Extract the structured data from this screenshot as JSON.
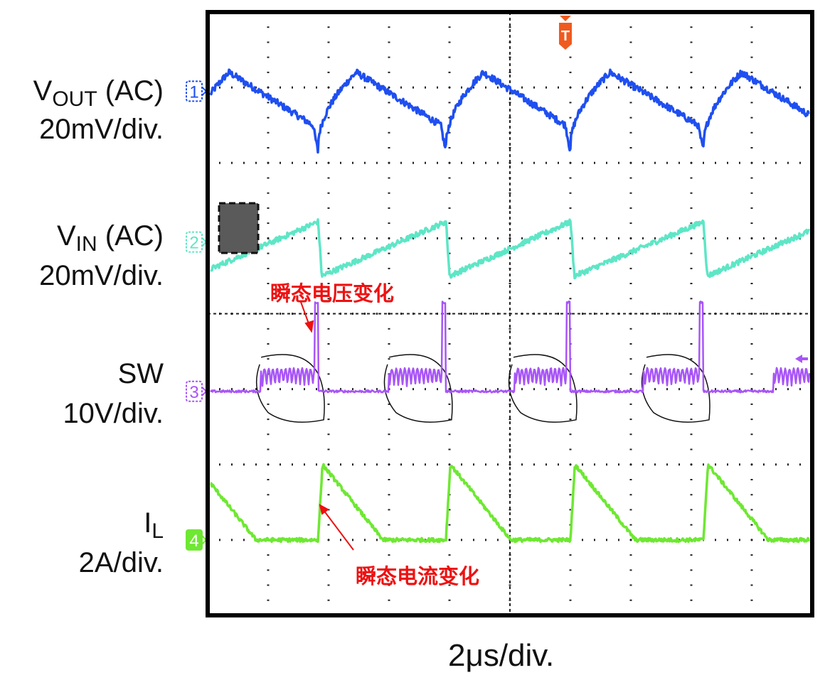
{
  "chart_data": {
    "type": "line",
    "title": "",
    "xlabel": "2μs/div.",
    "x_unit": "μs",
    "x_per_div": 2,
    "xlim": [
      0,
      20
    ],
    "divisions": {
      "x": 10,
      "y": 8
    },
    "grid": true,
    "switching_events_us": [
      3.65,
      7.88,
      12.0,
      16.4
    ],
    "trigger_marker": "T",
    "channels": [
      {
        "id": "1",
        "name": "V",
        "name_sub": "OUT",
        "suffix": " (AC)",
        "scale": "20mV/div.",
        "color": "#1f4ff0",
        "level_div": 1.05,
        "waveform": "output ripple: fast rise after switching event, slow decay, dip at event"
      },
      {
        "id": "2",
        "name": "V",
        "name_sub": "IN",
        "suffix": " (AC)",
        "scale": "20mV/div.",
        "color": "#5ee6c6",
        "level_div": 3.05,
        "waveform": "sawtooth: drops at switching event then ramps up"
      },
      {
        "id": "3",
        "name": "SW",
        "name_sub": "",
        "suffix": "",
        "scale": "10V/div.",
        "color": "#a855f7",
        "level_div": 5.03,
        "waveform": "flat with ringing burst before each event and a pulse at the event"
      },
      {
        "id": "4",
        "name": "I",
        "name_sub": "L",
        "suffix": "",
        "scale": "2A/div.",
        "color": "#6ee832",
        "level_div": 7.0,
        "waveform": "triangle: rises at event, ramps down over ~2μs, flat"
      }
    ],
    "annotations": [
      {
        "text": "瞬态电压变化",
        "target": "SW pulse",
        "color": "#ee1111"
      },
      {
        "text": "瞬态电流变化",
        "target": "I_L rising edge",
        "color": "#ee1111"
      }
    ]
  }
}
